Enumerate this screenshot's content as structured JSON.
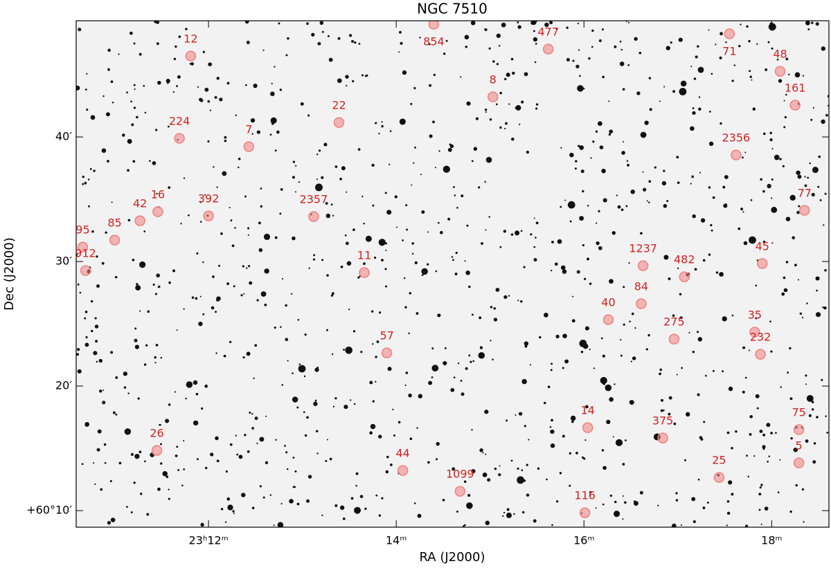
{
  "chart_data": {
    "type": "scatter",
    "title": "NGC 7510",
    "x_label": "RA (J2000)",
    "y_label": "Dec (J2000)",
    "labels": [
      "12",
      "854",
      "477",
      "71",
      "48",
      "8",
      "161",
      "22",
      "224",
      "7",
      "2356",
      "77",
      "16",
      "42",
      "392",
      "2357",
      "85",
      "95",
      "912",
      "11",
      "1237",
      "45",
      "482",
      "84",
      "40",
      "35",
      "275",
      "232",
      "57",
      "14",
      "75",
      "375",
      "26",
      "5",
      "44",
      "25",
      "1099",
      "116"
    ],
    "x": [
      11.81,
      14.4,
      15.62,
      17.55,
      18.09,
      15.03,
      18.25,
      13.39,
      11.69,
      12.43,
      17.62,
      18.35,
      11.46,
      11.27,
      12.0,
      13.12,
      11.0,
      10.66,
      10.69,
      13.66,
      16.63,
      17.9,
      17.07,
      16.61,
      16.26,
      17.82,
      16.96,
      17.88,
      13.9,
      16.04,
      18.29,
      16.84,
      11.45,
      18.29,
      14.07,
      17.44,
      14.68,
      16.01
    ],
    "y": [
      46.5,
      49.05,
      47.05,
      48.28,
      45.27,
      43.22,
      42.55,
      41.16,
      39.89,
      39.22,
      38.55,
      34.11,
      34.0,
      33.27,
      33.66,
      33.61,
      31.72,
      31.16,
      29.27,
      29.11,
      29.66,
      29.83,
      28.77,
      26.61,
      25.33,
      24.33,
      23.77,
      22.55,
      22.66,
      16.66,
      16.5,
      15.83,
      14.83,
      13.83,
      13.22,
      12.66,
      11.55,
      9.83
    ],
    "marker_color": "#f08080",
    "label_color": "#d42020",
    "xlim": [
      10.59,
      18.61
    ],
    "xticks": [
      {
        "value": 12,
        "label": "23ʰ12ᵐ"
      },
      {
        "value": 14,
        "label": "14ᵐ"
      },
      {
        "value": 16,
        "label": "16ᵐ"
      },
      {
        "value": 18,
        "label": "18ᵐ"
      }
    ],
    "ylim": [
      8.67,
      49.33
    ],
    "yticks": [
      {
        "value": 10,
        "label": "+60°10′"
      },
      {
        "value": 20,
        "label": "20′"
      },
      {
        "value": 30,
        "label": "30′"
      },
      {
        "value": 40,
        "label": "40′"
      }
    ]
  }
}
